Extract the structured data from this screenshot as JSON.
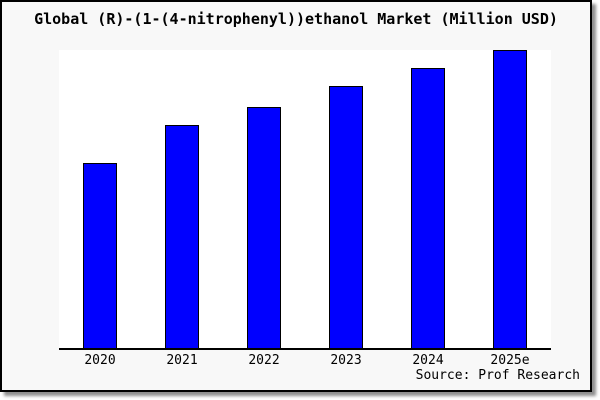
{
  "window": {
    "background_color": "#f8f8f8",
    "border_color": "#000000",
    "shadow_color": "#8f8f8f"
  },
  "source": "Source: Prof Research",
  "chart_data": {
    "type": "bar",
    "title": "Global (R)-(1-(4-nitrophenyl))ethanol Market (Million USD)",
    "categories": [
      "2020",
      "2021",
      "2022",
      "2023",
      "2024",
      "2025e"
    ],
    "values": [
      62,
      75,
      81,
      88,
      94,
      100
    ],
    "xlabel": "",
    "ylabel": "",
    "ylim": [
      0,
      100
    ],
    "y_axis_visible": false,
    "grid": false,
    "legend": "none",
    "bar_color": "#0000ff",
    "bar_border_color": "#000000",
    "plot_background": "#ffffff",
    "axis_color": "#000000"
  }
}
